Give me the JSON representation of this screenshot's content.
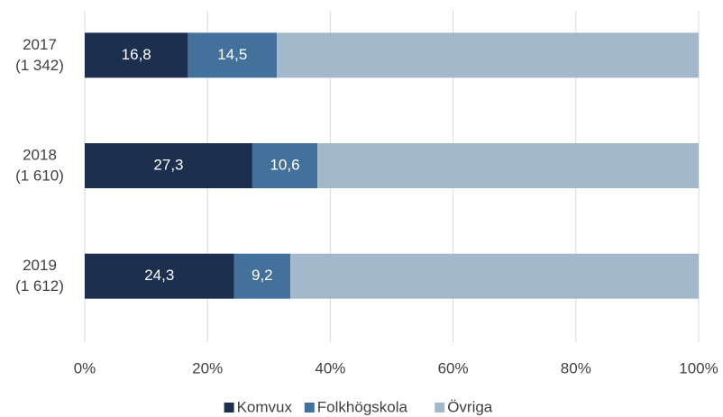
{
  "chart_data": {
    "type": "bar",
    "orientation": "horizontal",
    "stacked": true,
    "categories": [
      [
        "2017",
        "(1 342)"
      ],
      [
        "2018",
        "(1 610)"
      ],
      [
        "2019",
        "(1 612)"
      ]
    ],
    "series": [
      {
        "name": "Komvux",
        "color": "#1c2f4e",
        "values": [
          16.8,
          27.3,
          24.3
        ],
        "value_labels": [
          "16,8",
          "27,3",
          "24,3"
        ]
      },
      {
        "name": "Folkhögskola",
        "color": "#44719b",
        "values": [
          14.5,
          10.6,
          9.2
        ],
        "value_labels": [
          "14,5",
          "10,6",
          "9,2"
        ]
      },
      {
        "name": "Övriga",
        "color": "#a3b8cb",
        "values": [
          68.7,
          62.1,
          66.5
        ]
      }
    ],
    "xlim": [
      0,
      100
    ],
    "xticks": [
      {
        "value": 0,
        "label": "0%"
      },
      {
        "value": 20,
        "label": "20%"
      },
      {
        "value": 40,
        "label": "40%"
      },
      {
        "value": 60,
        "label": "60%"
      },
      {
        "value": 80,
        "label": "80%"
      },
      {
        "value": 100,
        "label": "100%"
      }
    ],
    "grid": true,
    "legend": "bottom"
  }
}
